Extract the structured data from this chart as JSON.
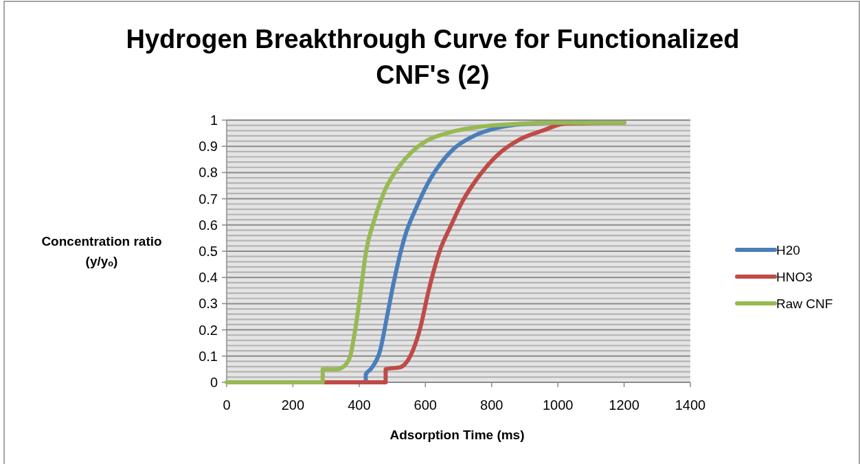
{
  "chart_data": {
    "type": "line",
    "title": "Hydrogen Breakthrough Curve for Functionalized CNF's (2)",
    "xlabel": "Adsorption Time (ms)",
    "ylabel": "Concentration ratio (y/yₒ)",
    "xlim": [
      0,
      1400
    ],
    "xticks": [
      0,
      200,
      400,
      600,
      800,
      1000,
      1200,
      1400
    ],
    "ylim": [
      0,
      1
    ],
    "yticks": [
      0,
      0.1,
      0.2,
      0.3,
      0.4,
      0.5,
      0.6,
      0.7,
      0.8,
      0.9,
      1
    ],
    "grid": "y",
    "legend": "right",
    "line_style": "solid",
    "series": [
      {
        "name": "H20",
        "color": "#4a7ebb",
        "x": [
          420,
          420,
          436,
          463,
          484,
          505,
          539,
          574,
          608,
          643,
          685,
          747,
          816,
          919,
          1000,
          1200
        ],
        "values": [
          0,
          0.03,
          0.052,
          0.12,
          0.25,
          0.385,
          0.56,
          0.67,
          0.76,
          0.83,
          0.89,
          0.94,
          0.97,
          0.987,
          0.99,
          0.99
        ]
      },
      {
        "name": "HNO3",
        "color": "#be4b48",
        "x": [
          290,
          480,
          480,
          525,
          560,
          585,
          608,
          643,
          678,
          712,
          761,
          816,
          886,
          954,
          1023,
          1200
        ],
        "values": [
          0,
          0,
          0.05,
          0.058,
          0.115,
          0.21,
          0.34,
          0.5,
          0.6,
          0.69,
          0.785,
          0.865,
          0.927,
          0.96,
          0.987,
          0.99
        ]
      },
      {
        "name": "Raw CNF",
        "color": "#98b954",
        "x": [
          0,
          290,
          290,
          332,
          353,
          373,
          388,
          405,
          421,
          446,
          477,
          519,
          560,
          602,
          664,
          768,
          871,
          975,
          1200
        ],
        "values": [
          0,
          0,
          0.05,
          0.05,
          0.06,
          0.1,
          0.2,
          0.35,
          0.5,
          0.62,
          0.73,
          0.82,
          0.88,
          0.92,
          0.95,
          0.975,
          0.985,
          0.99,
          0.99
        ]
      }
    ]
  }
}
